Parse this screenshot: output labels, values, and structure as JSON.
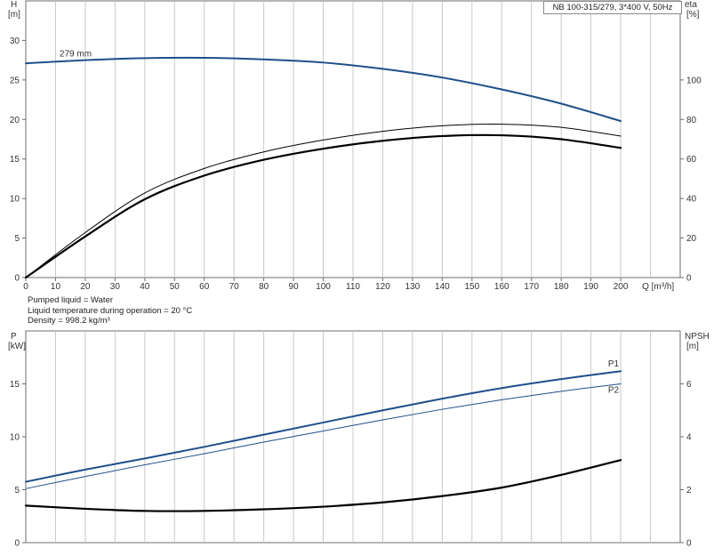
{
  "model_label": "NB 100-315/279, 3*400 V, 50Hz",
  "info_lines": [
    "Pumped liquid = Water",
    "Liquid temperature during operation = 20 °C",
    "Density = 998.2 kg/m³"
  ],
  "chart_data": [
    {
      "type": "line",
      "title": "",
      "left_axis": {
        "label": "H",
        "unit": "[m]",
        "ylim": [
          0,
          35
        ],
        "ticks": [
          0,
          5,
          10,
          15,
          20,
          25,
          30
        ]
      },
      "right_axis": {
        "label": "eta",
        "unit": "[%]",
        "ylim": [
          0,
          140
        ],
        "ticks": [
          0,
          20,
          40,
          60,
          80,
          100
        ]
      },
      "x_axis": {
        "label": "Q [m³/h]",
        "xlim": [
          0,
          220
        ],
        "ticks": [
          0,
          10,
          20,
          30,
          40,
          50,
          60,
          70,
          80,
          90,
          100,
          110,
          120,
          130,
          140,
          150,
          160,
          170,
          180,
          190,
          200
        ]
      },
      "grid": true,
      "series": [
        {
          "name": "279 mm",
          "axis": "left",
          "color": "#1f4f8a",
          "width": 2,
          "x": [
            0,
            20,
            40,
            60,
            80,
            100,
            120,
            140,
            160,
            180,
            200
          ],
          "y": [
            27.1,
            27.5,
            27.75,
            27.8,
            27.6,
            27.2,
            26.4,
            25.3,
            23.8,
            22.0,
            19.8
          ]
        },
        {
          "name": "",
          "axis": "right",
          "color": "#000000",
          "width": 1,
          "x": [
            0,
            20,
            40,
            60,
            80,
            100,
            120,
            140,
            160,
            180,
            200
          ],
          "y": [
            0,
            22.8,
            42.8,
            55.2,
            63.6,
            69.6,
            74.0,
            76.8,
            77.6,
            76.0,
            71.6
          ]
        },
        {
          "name": "",
          "axis": "right",
          "color": "#000000",
          "width": 2.2,
          "x": [
            0,
            20,
            40,
            60,
            80,
            100,
            120,
            140,
            160,
            180,
            200
          ],
          "y": [
            0,
            20.8,
            39.6,
            51.6,
            59.6,
            65.2,
            69.2,
            71.6,
            72.0,
            70.0,
            65.6
          ]
        }
      ]
    },
    {
      "type": "line",
      "title": "",
      "left_axis": {
        "label": "P",
        "unit": "[kW]",
        "ylim": [
          0,
          20
        ],
        "ticks": [
          0,
          5,
          10,
          15
        ]
      },
      "right_axis": {
        "label": "NPSH",
        "unit": "[m]",
        "ylim": [
          0,
          8
        ],
        "ticks": [
          0,
          2,
          4,
          6
        ]
      },
      "x_axis": {
        "label": "",
        "xlim": [
          0,
          220
        ],
        "ticks": [
          0,
          10,
          20,
          30,
          40,
          50,
          60,
          70,
          80,
          90,
          100,
          110,
          120,
          130,
          140,
          150,
          160,
          170,
          180,
          190,
          200
        ]
      },
      "grid": true,
      "series": [
        {
          "name": "P1",
          "axis": "left",
          "color": "#1f4f8a",
          "width": 2,
          "x": [
            0,
            20,
            40,
            60,
            80,
            100,
            120,
            140,
            160,
            180,
            200
          ],
          "y": [
            5.75,
            6.9,
            7.95,
            9.05,
            10.2,
            11.35,
            12.5,
            13.6,
            14.6,
            15.45,
            16.2
          ]
        },
        {
          "name": "P2",
          "axis": "left",
          "color": "#1f4f8a",
          "width": 1,
          "x": [
            0,
            20,
            40,
            60,
            80,
            100,
            120,
            140,
            160,
            180,
            200
          ],
          "y": [
            5.1,
            6.25,
            7.35,
            8.4,
            9.5,
            10.55,
            11.6,
            12.6,
            13.5,
            14.3,
            15.0
          ]
        },
        {
          "name": "",
          "axis": "right",
          "color": "#000000",
          "width": 2.2,
          "x": [
            0,
            20,
            40,
            60,
            80,
            100,
            120,
            140,
            160,
            180,
            200
          ],
          "y": [
            1.4,
            1.28,
            1.2,
            1.2,
            1.26,
            1.36,
            1.52,
            1.76,
            2.08,
            2.56,
            3.12
          ]
        }
      ]
    }
  ]
}
